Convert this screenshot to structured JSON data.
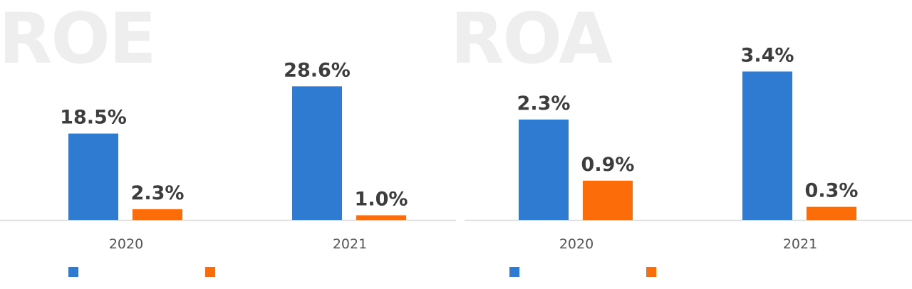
{
  "colors": {
    "series_1": "#2e7bd1",
    "series_2": "#fc6d0a",
    "axis": "#d9d9d9"
  },
  "chart_data": [
    {
      "type": "bar",
      "title": "ROE",
      "categories": [
        "2020",
        "2021"
      ],
      "series": [
        {
          "values": [
            18.5,
            28.6
          ],
          "labels": [
            "18.5%",
            "28.6%"
          ],
          "color": "#2e7bd1"
        },
        {
          "values": [
            2.3,
            1.0
          ],
          "labels": [
            "2.3%",
            "1.0%"
          ],
          "color": "#fc6d0a"
        }
      ],
      "ylim": [
        0,
        32
      ],
      "grid": false,
      "legend": "bottom"
    },
    {
      "type": "bar",
      "title": "ROA",
      "categories": [
        "2020",
        "2021"
      ],
      "series": [
        {
          "values": [
            2.3,
            3.4
          ],
          "labels": [
            "2.3%",
            "3.4%"
          ],
          "color": "#2e7bd1"
        },
        {
          "values": [
            0.9,
            0.3
          ],
          "labels": [
            "0.9%",
            "0.3%"
          ],
          "color": "#fc6d0a"
        }
      ],
      "ylim": [
        0,
        3.75
      ],
      "grid": false,
      "legend": "bottom"
    }
  ]
}
